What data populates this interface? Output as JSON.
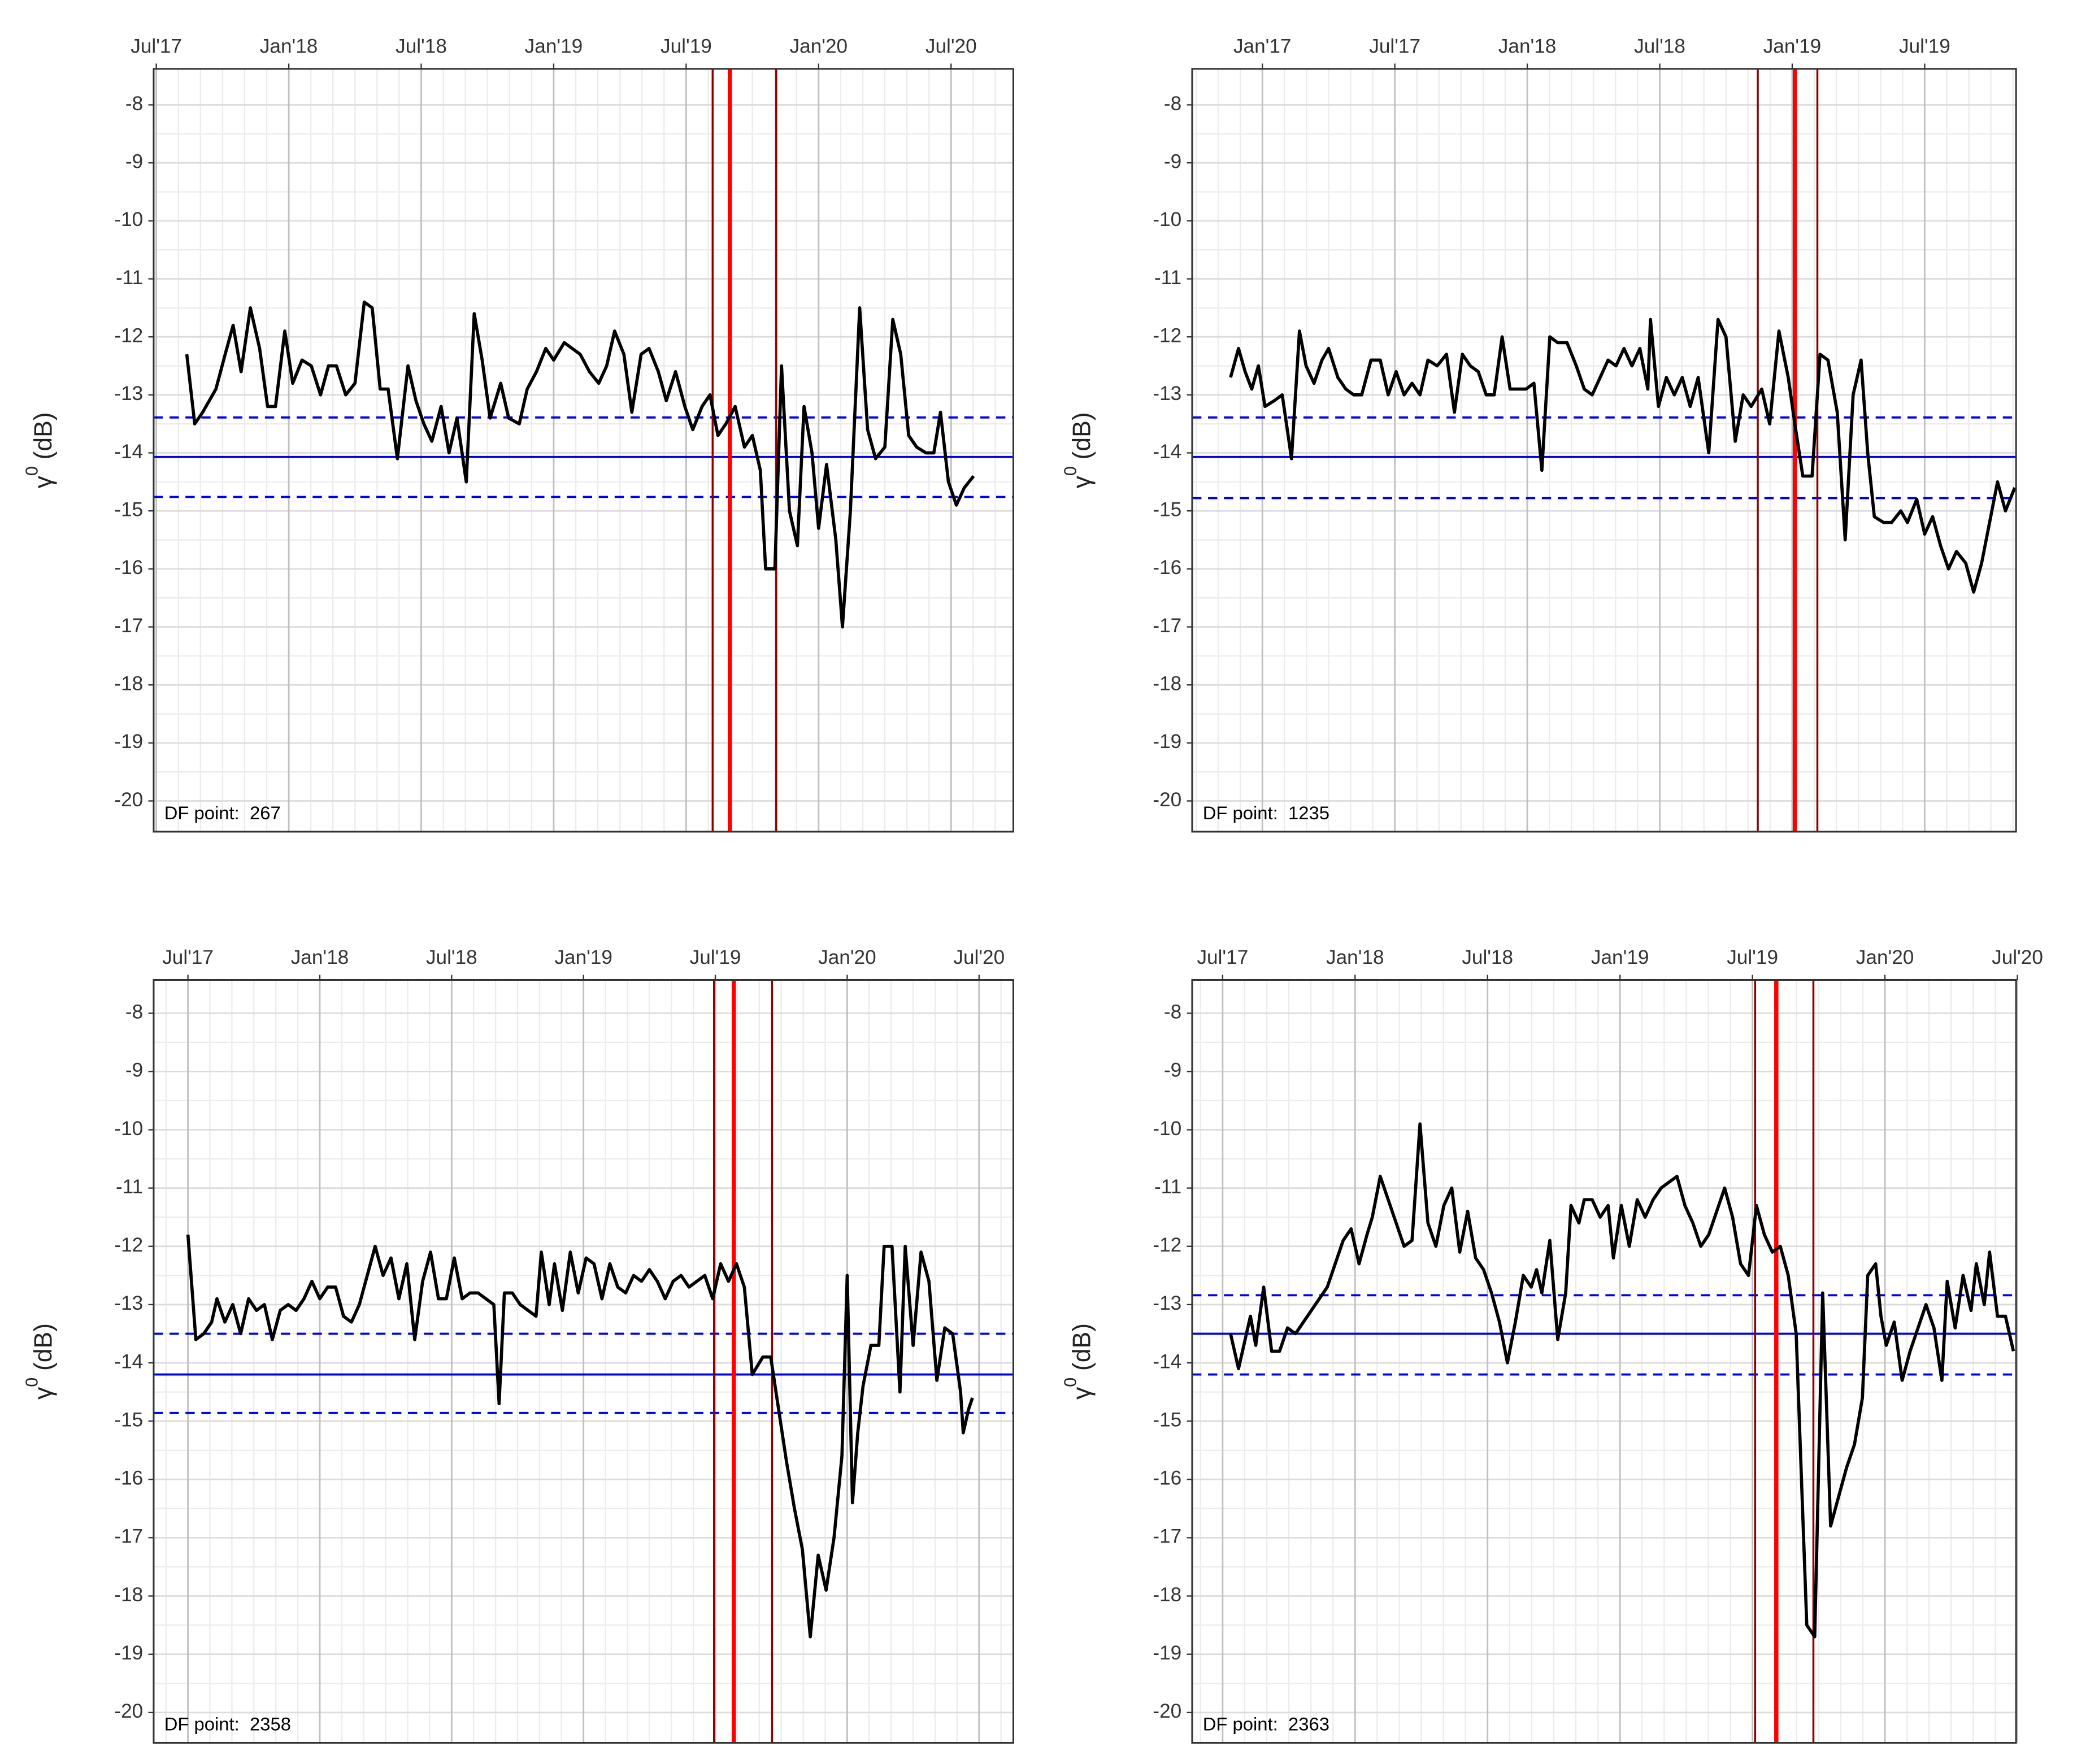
{
  "chart_data": [
    {
      "type": "line",
      "ylabel": "γ",
      "ylabel_sup": "0",
      "ylabel_unit": "(dB)",
      "annotation": "DF point:  267",
      "x": [
        2017.615,
        2017.645,
        2017.675,
        2017.725,
        2017.76,
        2017.79,
        2017.82,
        2017.855,
        2017.89,
        2017.92,
        2017.95,
        2017.985,
        2018.015,
        2018.05,
        2018.085,
        2018.12,
        2018.15,
        2018.18,
        2018.215,
        2018.25,
        2018.285,
        2018.315,
        2018.345,
        2018.375,
        2018.41,
        2018.45,
        2018.48,
        2018.51,
        2018.54,
        2018.575,
        2018.605,
        2018.635,
        2018.67,
        2018.7,
        2018.73,
        2018.76,
        2018.8,
        2018.83,
        2018.87,
        2018.9,
        2018.935,
        2018.97,
        2019.0,
        2019.04,
        2019.07,
        2019.1,
        2019.135,
        2019.17,
        2019.2,
        2019.23,
        2019.265,
        2019.295,
        2019.33,
        2019.36,
        2019.395,
        2019.425,
        2019.46,
        2019.495,
        2019.525,
        2019.56,
        2019.59,
        2019.62,
        2019.65,
        2019.685,
        2019.72,
        2019.75,
        2019.78,
        2019.8,
        2019.835,
        2019.86,
        2019.89,
        2019.92,
        2019.945,
        2019.975,
        2020.0,
        2020.03,
        2020.065,
        2020.09,
        2020.12,
        2020.155,
        2020.185,
        2020.215,
        2020.25,
        2020.28,
        2020.31,
        2020.34,
        2020.37,
        2020.405,
        2020.435,
        2020.46,
        2020.49,
        2020.52,
        2020.55,
        2020.585
      ],
      "values": [
        -12.3,
        -13.5,
        -13.3,
        -12.9,
        -12.3,
        -11.8,
        -12.6,
        -11.5,
        -12.2,
        -13.2,
        -13.2,
        -11.9,
        -12.8,
        -12.4,
        -12.5,
        -13.0,
        -12.5,
        -12.5,
        -13.0,
        -12.8,
        -11.4,
        -11.5,
        -12.9,
        -12.9,
        -14.1,
        -12.5,
        -13.1,
        -13.5,
        -13.8,
        -13.2,
        -14.0,
        -13.4,
        -14.5,
        -11.6,
        -12.4,
        -13.4,
        -12.8,
        -13.4,
        -13.5,
        -12.9,
        -12.6,
        -12.2,
        -12.4,
        -12.1,
        -12.2,
        -12.3,
        -12.6,
        -12.8,
        -12.5,
        -11.9,
        -12.3,
        -13.3,
        -12.3,
        -12.2,
        -12.6,
        -13.1,
        -12.6,
        -13.2,
        -13.6,
        -13.2,
        -13.0,
        -13.7,
        -13.5,
        -13.2,
        -13.9,
        -13.7,
        -14.3,
        -16.0,
        -16.0,
        -12.5,
        -15.0,
        -15.6,
        -13.2,
        -14.0,
        -15.3,
        -14.2,
        -15.5,
        -17.0,
        -15.0,
        -11.5,
        -13.6,
        -14.1,
        -13.9,
        -11.7,
        -12.3,
        -13.7,
        -13.9,
        -14.0,
        -14.0,
        -13.3,
        -14.5,
        -14.9,
        -14.6,
        -14.4
      ],
      "color": "#000000",
      "xlim": [
        2017.49,
        2020.735
      ],
      "ylim": [
        -20.53,
        -7.38
      ],
      "xticks": [
        {
          "value": 2017.5,
          "label": "Jul'17"
        },
        {
          "value": 2018.0,
          "label": "Jan'18"
        },
        {
          "value": 2018.5,
          "label": "Jul'18"
        },
        {
          "value": 2019.0,
          "label": "Jan'19"
        },
        {
          "value": 2019.5,
          "label": "Jul'19"
        },
        {
          "value": 2020.0,
          "label": "Jan'20"
        },
        {
          "value": 2020.5,
          "label": "Jul'20"
        }
      ],
      "yticks": [
        -8,
        -9,
        -10,
        -11,
        -12,
        -13,
        -14,
        -15,
        -16,
        -17,
        -18,
        -19,
        -20
      ],
      "hlines": [
        {
          "value": -14.07,
          "color": "#0000ee",
          "dashed": false
        },
        {
          "value": -13.39,
          "color": "#0000ee",
          "dashed": true
        },
        {
          "value": -14.76,
          "color": "#0000ee",
          "dashed": true
        }
      ],
      "vlines": [
        {
          "value": 2019.6,
          "color": "#8b0000"
        },
        {
          "value": 2019.665,
          "color": "#ff0000"
        },
        {
          "value": 2019.84,
          "color": "#8b0000"
        }
      ],
      "grid": true,
      "x_minor_divisions": 6
    },
    {
      "type": "line",
      "ylabel": "γ",
      "ylabel_sup": "0",
      "ylabel_unit": "(dB)",
      "annotation": "DF point:  1235",
      "x": [
        2016.88,
        2016.91,
        2016.935,
        2016.96,
        2016.985,
        2017.01,
        2017.045,
        2017.075,
        2017.11,
        2017.14,
        2017.165,
        2017.195,
        2017.225,
        2017.25,
        2017.285,
        2017.315,
        2017.345,
        2017.375,
        2017.41,
        2017.445,
        2017.475,
        2017.505,
        2017.535,
        2017.565,
        2017.595,
        2017.625,
        2017.66,
        2017.695,
        2017.725,
        2017.755,
        2017.785,
        2017.815,
        2017.845,
        2017.875,
        2017.905,
        2017.935,
        2017.965,
        2017.995,
        2018.025,
        2018.055,
        2018.085,
        2018.115,
        2018.15,
        2018.185,
        2018.215,
        2018.245,
        2018.275,
        2018.305,
        2018.335,
        2018.365,
        2018.395,
        2018.425,
        2018.455,
        2018.465,
        2018.495,
        2018.525,
        2018.555,
        2018.585,
        2018.615,
        2018.645,
        2018.685,
        2018.72,
        2018.75,
        2018.785,
        2018.815,
        2018.845,
        2018.885,
        2018.915,
        2018.95,
        2018.985,
        2019.01,
        2019.04,
        2019.075,
        2019.105,
        2019.135,
        2019.17,
        2019.2,
        2019.23,
        2019.26,
        2019.285,
        2019.31,
        2019.345,
        2019.375,
        2019.41,
        2019.435,
        2019.47,
        2019.5,
        2019.53,
        2019.56,
        2019.59,
        2019.62,
        2019.655,
        2019.685,
        2019.715,
        2019.745,
        2019.775,
        2019.805,
        2019.84
      ],
      "values": [
        -12.7,
        -12.2,
        -12.6,
        -12.9,
        -12.5,
        -13.2,
        -13.1,
        -13.0,
        -14.1,
        -11.9,
        -12.5,
        -12.8,
        -12.4,
        -12.2,
        -12.7,
        -12.9,
        -13.0,
        -13.0,
        -12.4,
        -12.4,
        -13.0,
        -12.6,
        -13.0,
        -12.8,
        -13.0,
        -12.4,
        -12.5,
        -12.3,
        -13.3,
        -12.3,
        -12.5,
        -12.6,
        -13.0,
        -13.0,
        -12.0,
        -12.9,
        -12.9,
        -12.9,
        -12.8,
        -14.3,
        -12.0,
        -12.1,
        -12.1,
        -12.5,
        -12.9,
        -13.0,
        -12.7,
        -12.4,
        -12.5,
        -12.2,
        -12.5,
        -12.2,
        -12.9,
        -11.7,
        -13.2,
        -12.7,
        -13.0,
        -12.7,
        -13.2,
        -12.7,
        -14.0,
        -11.7,
        -12.0,
        -13.8,
        -13.0,
        -13.2,
        -12.9,
        -13.5,
        -11.9,
        -12.7,
        -13.5,
        -14.4,
        -14.4,
        -12.3,
        -12.4,
        -13.3,
        -15.5,
        -13.0,
        -12.4,
        -14.0,
        -15.1,
        -15.2,
        -15.2,
        -15.0,
        -15.2,
        -14.8,
        -15.4,
        -15.1,
        -15.6,
        -16.0,
        -15.7,
        -15.9,
        -16.4,
        -15.9,
        -15.2,
        -14.5,
        -15.0,
        -14.6
      ],
      "color": "#000000",
      "xlim": [
        2016.735,
        2019.845
      ],
      "ylim": [
        -20.53,
        -7.38
      ],
      "xticks": [
        {
          "value": 2017.0,
          "label": "Jan'17"
        },
        {
          "value": 2017.5,
          "label": "Jul'17"
        },
        {
          "value": 2018.0,
          "label": "Jan'18"
        },
        {
          "value": 2018.5,
          "label": "Jul'18"
        },
        {
          "value": 2019.0,
          "label": "Jan'19"
        },
        {
          "value": 2019.5,
          "label": "Jul'19"
        }
      ],
      "yticks": [
        -8,
        -9,
        -10,
        -11,
        -12,
        -13,
        -14,
        -15,
        -16,
        -17,
        -18,
        -19,
        -20
      ],
      "hlines": [
        {
          "value": -14.07,
          "color": "#0000ee",
          "dashed": false
        },
        {
          "value": -13.39,
          "color": "#0000ee",
          "dashed": true
        },
        {
          "value": -14.78,
          "color": "#0000ee",
          "dashed": true
        }
      ],
      "vlines": [
        {
          "value": 2018.87,
          "color": "#8b0000"
        },
        {
          "value": 2019.01,
          "color": "#ff0000"
        },
        {
          "value": 2019.095,
          "color": "#8b0000"
        }
      ],
      "grid": true,
      "x_minor_divisions": 6
    },
    {
      "type": "line",
      "ylabel": "γ",
      "ylabel_sup": "0",
      "ylabel_unit": "(dB)",
      "annotation": "DF point:  2358",
      "x": [
        2017.5,
        2017.53,
        2017.56,
        2017.59,
        2017.61,
        2017.64,
        2017.67,
        2017.7,
        2017.73,
        2017.76,
        2017.79,
        2017.82,
        2017.85,
        2017.88,
        2017.91,
        2017.94,
        2017.97,
        2018.0,
        2018.03,
        2018.06,
        2018.09,
        2018.12,
        2018.15,
        2018.18,
        2018.21,
        2018.24,
        2018.27,
        2018.3,
        2018.33,
        2018.36,
        2018.39,
        2018.42,
        2018.45,
        2018.48,
        2018.51,
        2018.54,
        2018.57,
        2018.6,
        2018.63,
        2018.66,
        2018.68,
        2018.7,
        2018.73,
        2018.76,
        2018.79,
        2018.82,
        2018.84,
        2018.87,
        2018.89,
        2018.92,
        2018.95,
        2018.98,
        2019.01,
        2019.04,
        2019.07,
        2019.1,
        2019.13,
        2019.16,
        2019.19,
        2019.22,
        2019.25,
        2019.28,
        2019.31,
        2019.34,
        2019.37,
        2019.4,
        2019.43,
        2019.46,
        2019.49,
        2019.52,
        2019.55,
        2019.58,
        2019.61,
        2019.64,
        2019.68,
        2019.71,
        2019.74,
        2019.77,
        2019.8,
        2019.83,
        2019.86,
        2019.89,
        2019.92,
        2019.95,
        2019.98,
        2020.0,
        2020.02,
        2020.04,
        2020.06,
        2020.09,
        2020.12,
        2020.14,
        2020.17,
        2020.2,
        2020.22,
        2020.25,
        2020.28,
        2020.31,
        2020.34,
        2020.37,
        2020.4,
        2020.43,
        2020.44,
        2020.46,
        2020.475
      ],
      "values": [
        -11.8,
        -13.6,
        -13.5,
        -13.3,
        -12.9,
        -13.3,
        -13.0,
        -13.5,
        -12.9,
        -13.1,
        -13.0,
        -13.6,
        -13.1,
        -13.0,
        -13.1,
        -12.9,
        -12.6,
        -12.9,
        -12.7,
        -12.7,
        -13.2,
        -13.3,
        -13.0,
        -12.5,
        -12.0,
        -12.5,
        -12.2,
        -12.9,
        -12.3,
        -13.6,
        -12.6,
        -12.1,
        -12.9,
        -12.9,
        -12.2,
        -12.9,
        -12.8,
        -12.8,
        -12.9,
        -13.0,
        -14.7,
        -12.8,
        -12.8,
        -13.0,
        -13.1,
        -13.2,
        -12.1,
        -13.0,
        -12.3,
        -13.1,
        -12.1,
        -12.8,
        -12.2,
        -12.3,
        -12.9,
        -12.3,
        -12.7,
        -12.8,
        -12.5,
        -12.6,
        -12.4,
        -12.6,
        -12.9,
        -12.6,
        -12.5,
        -12.7,
        -12.6,
        -12.5,
        -12.9,
        -12.3,
        -12.6,
        -12.3,
        -12.7,
        -14.2,
        -13.9,
        -13.9,
        -14.8,
        -15.7,
        -16.5,
        -17.2,
        -18.7,
        -17.3,
        -17.9,
        -17.0,
        -15.6,
        -12.5,
        -16.4,
        -15.2,
        -14.4,
        -13.7,
        -13.7,
        -12.0,
        -12.0,
        -14.5,
        -12.0,
        -13.7,
        -12.1,
        -12.6,
        -14.3,
        -13.4,
        -13.5,
        -14.5,
        -15.2,
        -14.8,
        -14.6
      ],
      "color": "#000000",
      "xlim": [
        2017.37,
        2020.63
      ],
      "ylim": [
        -20.52,
        -7.43
      ],
      "xticks": [
        {
          "value": 2017.5,
          "label": "Jul'17"
        },
        {
          "value": 2018.0,
          "label": "Jan'18"
        },
        {
          "value": 2018.5,
          "label": "Jul'18"
        },
        {
          "value": 2019.0,
          "label": "Jan'19"
        },
        {
          "value": 2019.5,
          "label": "Jul'19"
        },
        {
          "value": 2020.0,
          "label": "Jan'20"
        },
        {
          "value": 2020.5,
          "label": "Jul'20"
        }
      ],
      "yticks": [
        -8,
        -9,
        -10,
        -11,
        -12,
        -13,
        -14,
        -15,
        -16,
        -17,
        -18,
        -19,
        -20
      ],
      "hlines": [
        {
          "value": -14.2,
          "color": "#0000ee",
          "dashed": false
        },
        {
          "value": -13.5,
          "color": "#0000ee",
          "dashed": true
        },
        {
          "value": -14.86,
          "color": "#0000ee",
          "dashed": true
        }
      ],
      "vlines": [
        {
          "value": 2019.495,
          "color": "#8b0000"
        },
        {
          "value": 2019.57,
          "color": "#ff0000"
        },
        {
          "value": 2019.715,
          "color": "#8b0000"
        }
      ],
      "grid": true,
      "x_minor_divisions": 6
    },
    {
      "type": "line",
      "ylabel": "γ",
      "ylabel_sup": "0",
      "ylabel_unit": "(dB)",
      "annotation": "DF point:  2363",
      "x": [
        2017.53,
        2017.56,
        2017.585,
        2017.605,
        2017.625,
        2017.655,
        2017.685,
        2017.715,
        2017.745,
        2017.775,
        2017.805,
        2017.835,
        2017.865,
        2017.895,
        2017.925,
        2017.955,
        2017.985,
        2018.015,
        2018.045,
        2018.065,
        2018.095,
        2018.125,
        2018.155,
        2018.185,
        2018.215,
        2018.245,
        2018.275,
        2018.305,
        2018.335,
        2018.365,
        2018.395,
        2018.425,
        2018.455,
        2018.485,
        2018.515,
        2018.545,
        2018.575,
        2018.605,
        2018.635,
        2018.665,
        2018.685,
        2018.705,
        2018.735,
        2018.765,
        2018.795,
        2018.815,
        2018.845,
        2018.865,
        2018.895,
        2018.925,
        2018.955,
        2018.975,
        2019.005,
        2019.035,
        2019.065,
        2019.095,
        2019.125,
        2019.155,
        2019.185,
        2019.215,
        2019.245,
        2019.275,
        2019.305,
        2019.335,
        2019.365,
        2019.395,
        2019.425,
        2019.455,
        2019.485,
        2019.515,
        2019.545,
        2019.575,
        2019.605,
        2019.635,
        2019.665,
        2019.685,
        2019.705,
        2019.735,
        2019.765,
        2019.795,
        2019.825,
        2019.855,
        2019.885,
        2019.915,
        2019.935,
        2019.965,
        2019.985,
        2020.005,
        2020.035,
        2020.065,
        2020.095,
        2020.125,
        2020.155,
        2020.185,
        2020.215,
        2020.235,
        2020.265,
        2020.295,
        2020.325,
        2020.345,
        2020.375,
        2020.395,
        2020.425,
        2020.455,
        2020.485
      ],
      "values": [
        -13.5,
        -14.1,
        -13.6,
        -13.2,
        -13.7,
        -12.7,
        -13.8,
        -13.8,
        -13.4,
        -13.5,
        -13.3,
        -13.1,
        -12.9,
        -12.7,
        -12.3,
        -11.9,
        -11.7,
        -12.3,
        -11.8,
        -11.5,
        -10.8,
        -11.2,
        -11.6,
        -12.0,
        -11.9,
        -9.9,
        -11.6,
        -12.0,
        -11.3,
        -11.0,
        -12.1,
        -11.4,
        -12.2,
        -12.4,
        -12.8,
        -13.3,
        -14.0,
        -13.3,
        -12.5,
        -12.7,
        -12.4,
        -12.8,
        -11.9,
        -13.6,
        -12.8,
        -11.3,
        -11.6,
        -11.2,
        -11.2,
        -11.5,
        -11.3,
        -12.2,
        -11.3,
        -12.0,
        -11.2,
        -11.5,
        -11.2,
        -11.0,
        -10.9,
        -10.8,
        -11.3,
        -11.6,
        -12.0,
        -11.8,
        -11.4,
        -11.0,
        -11.5,
        -12.3,
        -12.5,
        -11.3,
        -11.8,
        -12.1,
        -12.0,
        -12.5,
        -13.5,
        -16.0,
        -18.5,
        -18.7,
        -12.8,
        -16.8,
        -16.3,
        -15.8,
        -15.4,
        -14.6,
        -12.5,
        -12.3,
        -13.2,
        -13.7,
        -13.3,
        -14.3,
        -13.8,
        -13.4,
        -13.0,
        -13.4,
        -14.3,
        -12.6,
        -13.4,
        -12.5,
        -13.1,
        -12.3,
        -13.0,
        -12.1,
        -13.2,
        -13.2,
        -13.8
      ],
      "color": "#000000",
      "xlim": [
        2017.385,
        2020.495
      ],
      "ylim": [
        -20.52,
        -7.43
      ],
      "xticks": [
        {
          "value": 2017.5,
          "label": "Jul'17"
        },
        {
          "value": 2018.0,
          "label": "Jan'18"
        },
        {
          "value": 2018.5,
          "label": "Jul'18"
        },
        {
          "value": 2019.0,
          "label": "Jan'19"
        },
        {
          "value": 2019.5,
          "label": "Jul'19"
        },
        {
          "value": 2020.0,
          "label": "Jan'20"
        },
        {
          "value": 2020.5,
          "label": "Jul'20"
        }
      ],
      "yticks": [
        -8,
        -9,
        -10,
        -11,
        -12,
        -13,
        -14,
        -15,
        -16,
        -17,
        -18,
        -19,
        -20
      ],
      "hlines": [
        {
          "value": -13.5,
          "color": "#0000ee",
          "dashed": false
        },
        {
          "value": -12.84,
          "color": "#0000ee",
          "dashed": true
        },
        {
          "value": -14.2,
          "color": "#0000ee",
          "dashed": true
        }
      ],
      "vlines": [
        {
          "value": 2019.51,
          "color": "#8b0000"
        },
        {
          "value": 2019.59,
          "color": "#ff0000"
        },
        {
          "value": 2019.73,
          "color": "#8b0000"
        }
      ],
      "grid": true,
      "x_minor_divisions": 6
    }
  ]
}
